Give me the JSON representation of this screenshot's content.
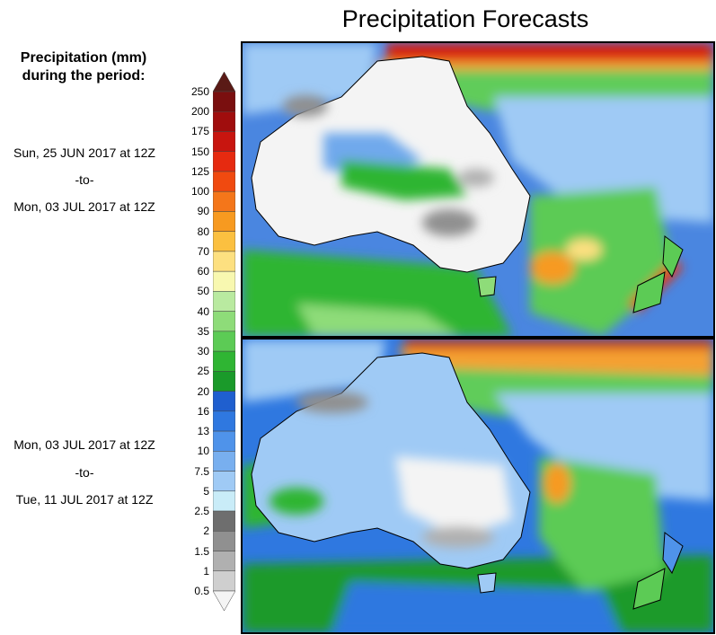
{
  "title": "Precipitation Forecasts",
  "legend": {
    "title_line1": "Precipitation (mm)",
    "title_line2": "during the period:",
    "ticks": [
      "250",
      "200",
      "175",
      "150",
      "125",
      "100",
      "90",
      "80",
      "70",
      "60",
      "50",
      "40",
      "35",
      "30",
      "25",
      "20",
      "16",
      "13",
      "10",
      "7.5",
      "5",
      "2.5",
      "2",
      "1.5",
      "1",
      "0.5"
    ],
    "colors": [
      "#5a1a16",
      "#7a0f0f",
      "#a00d0d",
      "#c8150f",
      "#e62a10",
      "#f04a10",
      "#f4761a",
      "#f79a20",
      "#fbc040",
      "#fde080",
      "#f8f8b0",
      "#b9eaa0",
      "#8edc79",
      "#5ccb55",
      "#2fb533",
      "#1a9a2a",
      "#1f5fcf",
      "#2f78e0",
      "#4f93ea",
      "#78afef",
      "#9fcaf5",
      "#c9ecf8",
      "#6e6e6e",
      "#909090",
      "#b0b0b0",
      "#cfcfcf",
      "#f4f4f4"
    ]
  },
  "periods": [
    {
      "start": "Sun, 25 JUN 2017 at 12Z",
      "to": "-to-",
      "end": "Mon, 03 JUL 2017 at 12Z"
    },
    {
      "start": "Mon, 03 JUL 2017 at 12Z",
      "to": "-to-",
      "end": "Tue, 11 JUL 2017 at 12Z"
    }
  ]
}
